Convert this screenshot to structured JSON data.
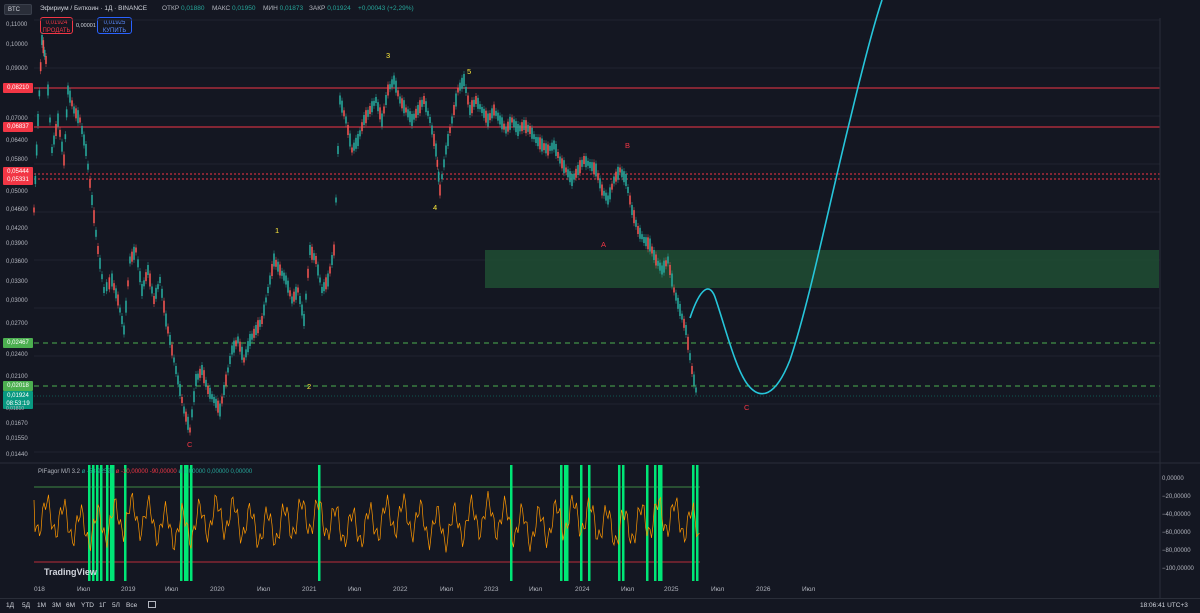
{
  "header": {
    "symbol": "BTC",
    "title": "Эфириум / Биткоин · 1Д · BINANCE",
    "ohlc": [
      {
        "key": "ОТКР",
        "value": "0,01880"
      },
      {
        "key": "МАКС",
        "value": "0,01950"
      },
      {
        "key": "МИН",
        "value": "0,01873"
      },
      {
        "key": "ЗАКР",
        "value": "0,01924"
      }
    ],
    "change": "+0,00043 (+2,29%)",
    "sell_price": "0,01924",
    "sell_label": "ПРОДАТЬ",
    "spread": "0,00001",
    "buy_price": "0,01925",
    "buy_label": "КУПИТЬ"
  },
  "colors": {
    "background": "#141722",
    "up_candle": "#26a69a",
    "down_candle": "#ef5350",
    "resistance": "#f23645",
    "support": "#4caf50",
    "projection": "#26c6da",
    "zone": "#1e4d33",
    "oscillator": "#ff9800",
    "signal": "#00e676"
  },
  "price_axis": {
    "labels": [
      "0,11000",
      "0,10000",
      "0,09000",
      "0,07000",
      "0,06400",
      "0,05800",
      "0,05000",
      "0,04600",
      "0,04200",
      "0,03900",
      "0,03600",
      "0,03300",
      "0,03000",
      "0,02700",
      "0,02400",
      "0,02100",
      "0,01670",
      "0,01550",
      "0,01440"
    ],
    "tags": [
      {
        "text": "0,08210",
        "color": "#f23645"
      },
      {
        "text": "0,06837",
        "color": "#f23645"
      },
      {
        "text": "0,05444",
        "color": "#f23645"
      },
      {
        "text": "0,05331",
        "color": "#f23645"
      },
      {
        "text": "0,02467",
        "color": "#4caf50"
      },
      {
        "text": "0,02018",
        "color": "#4caf50"
      },
      {
        "text": "0,01924",
        "color": "#089981"
      }
    ],
    "countdown": "08:53:19",
    "last_small": "0,01810"
  },
  "wave_labels": [
    {
      "text": "1",
      "color": "#ffeb3b"
    },
    {
      "text": "2",
      "color": "#ffeb3b"
    },
    {
      "text": "3",
      "color": "#ffeb3b"
    },
    {
      "text": "4",
      "color": "#ffeb3b"
    },
    {
      "text": "5",
      "color": "#ffeb3b"
    },
    {
      "text": "A",
      "color": "#f23645"
    },
    {
      "text": "B",
      "color": "#f23645"
    },
    {
      "text": "C",
      "color": "#f23645"
    },
    {
      "text": "C",
      "color": "#f23645"
    }
  ],
  "indicator": {
    "name": "PIFagor МЛ 3.2",
    "values": [
      {
        "text": "-53,92528",
        "color": "#26a69a"
      },
      {
        "text": "-10,00000",
        "color": "#f23645"
      },
      {
        "text": "-90,00000",
        "color": "#f23645"
      },
      {
        "text": "0,00000",
        "color": "#26a69a"
      },
      {
        "text": "0,00000",
        "color": "#26a69a"
      },
      {
        "text": "0,00000",
        "color": "#26a69a"
      }
    ],
    "axis_labels": [
      "0,00000",
      "−20,00000",
      "−40,00000",
      "−60,00000",
      "−80,00000",
      "−100,00000"
    ]
  },
  "time_axis": [
    "018",
    "Июл",
    "2019",
    "Июл",
    "2020",
    "Июл",
    "2021",
    "Июл",
    "2022",
    "Июл",
    "2023",
    "Июл",
    "2024",
    "Июл",
    "2025",
    "Июл",
    "2026",
    "Июл"
  ],
  "timeframes": [
    "1Д",
    "5Д",
    "1М",
    "3М",
    "6М",
    "YTD",
    "1Г",
    "5Л",
    "Все"
  ],
  "clock": "18:06:41 UTC+3",
  "brand": "TradingView"
}
